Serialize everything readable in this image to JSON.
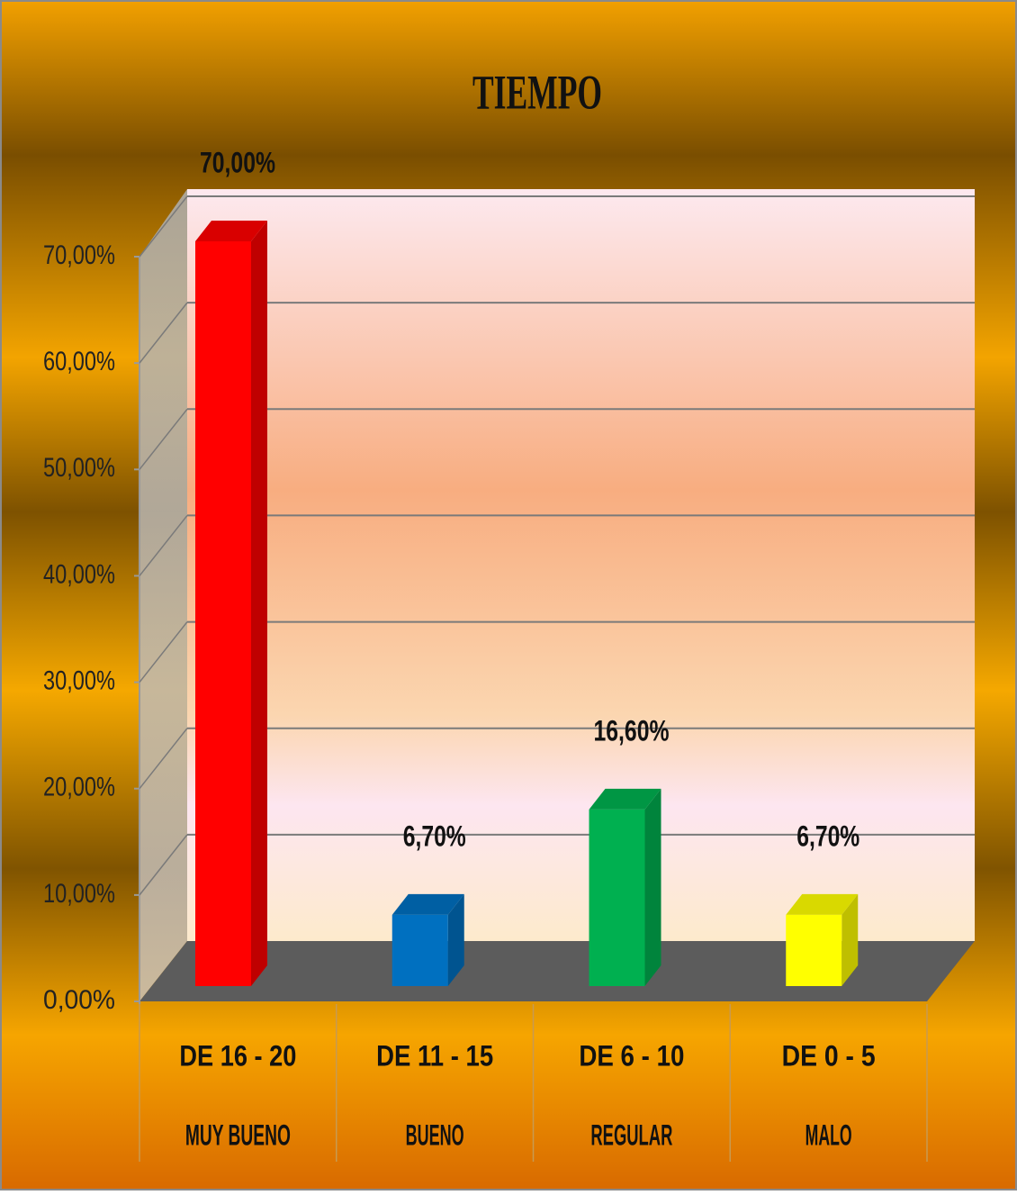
{
  "chart_data": {
    "type": "bar3d",
    "title": "TIEMPO",
    "categories": [
      [
        "DE 16 - 20",
        "MUY BUENO"
      ],
      [
        "DE 11 - 15",
        "BUENO"
      ],
      [
        "DE 6 - 10",
        "REGULAR"
      ],
      [
        "DE 0 - 5",
        "MALO"
      ]
    ],
    "values": [
      70,
      6.7,
      16.6,
      6.7
    ],
    "value_labels": [
      "70,00%",
      "6,70%",
      "16,60%",
      "6,70%"
    ],
    "colors": [
      "#ff0000",
      "#0070c0",
      "#00b050",
      "#ffff00"
    ],
    "ylim": [
      0,
      70
    ],
    "yticks": [
      {
        "value": 0,
        "label": "0,00%"
      },
      {
        "value": 10,
        "label": "10,00%"
      },
      {
        "value": 20,
        "label": "20,00%"
      },
      {
        "value": 30,
        "label": "30,00%"
      },
      {
        "value": 40,
        "label": "40,00%"
      },
      {
        "value": 50,
        "label": "50,00%"
      },
      {
        "value": 60,
        "label": "60,00%"
      },
      {
        "value": 70,
        "label": "70,00%"
      }
    ],
    "grid": true
  }
}
